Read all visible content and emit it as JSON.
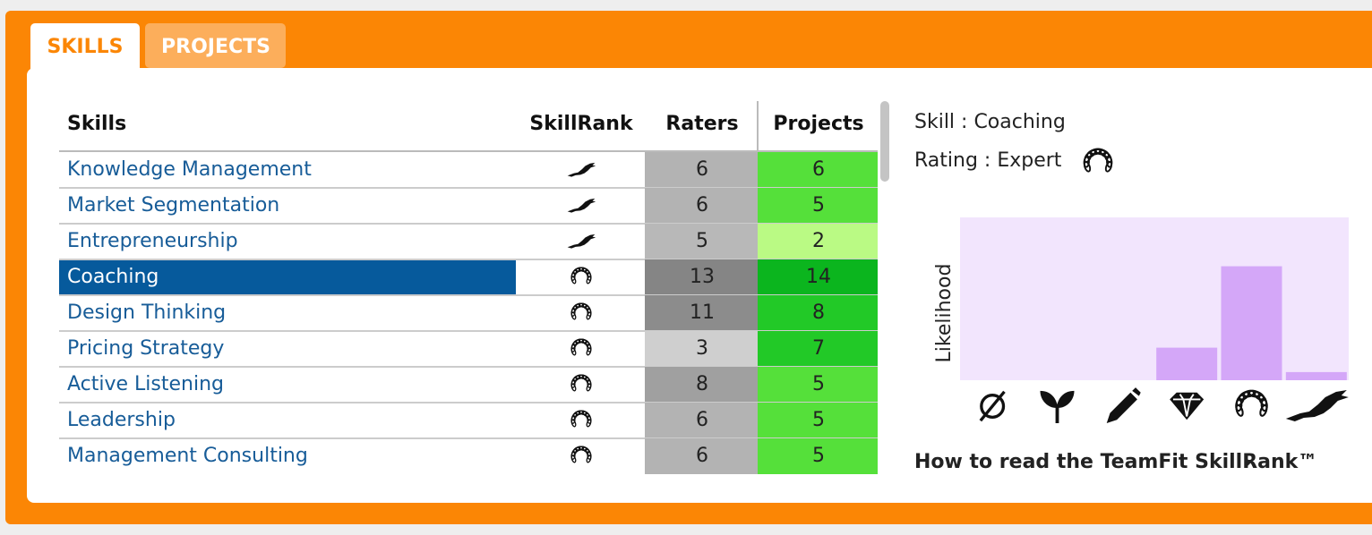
{
  "tabs": [
    "SKILLS",
    "PROJECTS"
  ],
  "table": {
    "headers": [
      "Skills",
      "SkillRank",
      "Raters",
      "Projects"
    ],
    "selected_row": 3,
    "rows": [
      {
        "skill": "Knowledge Management",
        "skillrank": "eagle",
        "raters": 6,
        "projects": 6,
        "raters_color": "#b3b3b3",
        "projects_color": "#55e03a"
      },
      {
        "skill": "Market Segmentation",
        "skillrank": "eagle",
        "raters": 6,
        "projects": 5,
        "raters_color": "#b3b3b3",
        "projects_color": "#55e03a"
      },
      {
        "skill": "Entrepreneurship",
        "skillrank": "eagle",
        "raters": 5,
        "projects": 2,
        "raters_color": "#b8b8b8",
        "projects_color": "#bafa84"
      },
      {
        "skill": "Coaching",
        "skillrank": "laurel",
        "raters": 13,
        "projects": 14,
        "raters_color": "#858585",
        "projects_color": "#0bb51e"
      },
      {
        "skill": "Design Thinking",
        "skillrank": "laurel",
        "raters": 11,
        "projects": 8,
        "raters_color": "#8c8c8c",
        "projects_color": "#22c927"
      },
      {
        "skill": "Pricing Strategy",
        "skillrank": "laurel",
        "raters": 3,
        "projects": 7,
        "raters_color": "#cfcfcf",
        "projects_color": "#22c927"
      },
      {
        "skill": "Active Listening",
        "skillrank": "laurel",
        "raters": 8,
        "projects": 5,
        "raters_color": "#a0a0a0",
        "projects_color": "#55e03a"
      },
      {
        "skill": "Leadership",
        "skillrank": "laurel",
        "raters": 6,
        "projects": 5,
        "raters_color": "#b3b3b3",
        "projects_color": "#55e03a"
      },
      {
        "skill": "Management Consulting",
        "skillrank": "laurel",
        "raters": 6,
        "projects": 5,
        "raters_color": "#b3b3b3",
        "projects_color": "#55e03a"
      }
    ]
  },
  "details": {
    "skill": "Skill : Coaching",
    "rating": "Rating : Expert",
    "rating_icon": "laurel"
  },
  "chart_data": {
    "type": "bar",
    "y_label": "Likelihood",
    "categories": [
      null,
      null,
      null,
      null,
      null,
      null
    ],
    "category_icons": [
      "none",
      "sprout",
      "pencil",
      "diamond",
      "laurel",
      "eagle"
    ],
    "values": [
      0,
      0,
      0,
      0.2,
      0.7,
      0.05
    ],
    "ylim": [
      0,
      1
    ],
    "color": "#d4a7f8",
    "background": "#f2e5fd"
  },
  "link": "How to read the TeamFit SkillRank™"
}
